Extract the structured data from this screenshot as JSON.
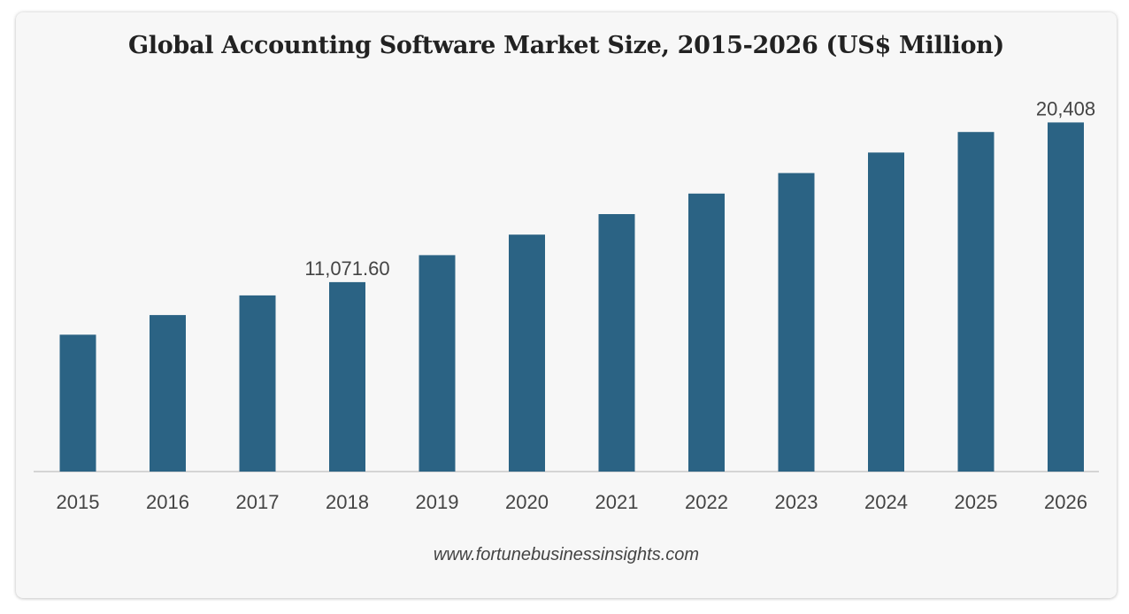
{
  "chart_data": {
    "type": "bar",
    "title": "Global Accounting Software Market Size, 2015-2026 (US$ Million)",
    "xlabel": "",
    "ylabel": "",
    "categories": [
      "2015",
      "2016",
      "2017",
      "2018",
      "2019",
      "2020",
      "2021",
      "2022",
      "2023",
      "2024",
      "2025",
      "2026"
    ],
    "values": [
      8000,
      9150,
      10300,
      11071.6,
      12650,
      13850,
      15050,
      16250,
      17450,
      18650,
      19850,
      20408
    ],
    "data_labels": {
      "3": "11,071.60",
      "11": "20,408"
    },
    "ylim": [
      0,
      21000
    ],
    "grid": false,
    "legend": "none",
    "bar_color": "#2b6384",
    "axis_color": "#c8c8c8",
    "label_color": "#444444"
  },
  "source": "www.fortunebusinessinsights.com"
}
